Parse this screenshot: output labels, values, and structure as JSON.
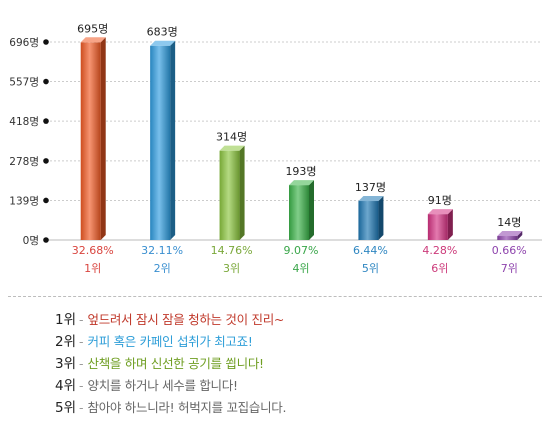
{
  "chart_data": {
    "type": "bar",
    "title": "",
    "xlabel": "",
    "ylabel": "",
    "ylim": [
      0,
      696
    ],
    "yticks": [
      {
        "value": 0,
        "label": "0명"
      },
      {
        "value": 139,
        "label": "139명"
      },
      {
        "value": 278,
        "label": "278명"
      },
      {
        "value": 418,
        "label": "418명"
      },
      {
        "value": 557,
        "label": "557명"
      },
      {
        "value": 696,
        "label": "696명"
      }
    ],
    "categories": [
      "1위",
      "2위",
      "3위",
      "4위",
      "5위",
      "6위",
      "7위"
    ],
    "values": [
      695,
      683,
      314,
      193,
      137,
      91,
      14
    ],
    "value_labels": [
      "695명",
      "683명",
      "314명",
      "193명",
      "137명",
      "91명",
      "14명"
    ],
    "percent_labels": [
      "32.68%",
      "32.11%",
      "14.76%",
      "9.07%",
      "6.44%",
      "4.28%",
      "0.66%"
    ],
    "colors": [
      "#f15a24",
      "#2f9de0",
      "#8cc63f",
      "#3cb44a",
      "#1f78b4",
      "#d63384",
      "#8e44ad"
    ],
    "label_colors": [
      "#d9453f",
      "#3a8fd0",
      "#7aa83a",
      "#3aa64a",
      "#2e86c1",
      "#cc3a7a",
      "#8e44ad"
    ],
    "grid": true,
    "legend": "none"
  },
  "legend": {
    "items": [
      {
        "rank": "1위",
        "text": "엎드려서 잠시 잠을 청하는 것이 진리~",
        "color": "#c0392b"
      },
      {
        "rank": "2위",
        "text": "커피 혹은 카페인 섭취가 최고죠!",
        "color": "#2e9ed8"
      },
      {
        "rank": "3위",
        "text": "산책을 하며 신선한 공기를 쐽니다!",
        "color": "#6f9e22"
      },
      {
        "rank": "4위",
        "text": "양치를 하거나 세수를 합니다!",
        "color": "#666666"
      },
      {
        "rank": "5위",
        "text": "참아야 하느니라! 허벅지를 꼬집습니다.",
        "color": "#666666"
      }
    ]
  }
}
